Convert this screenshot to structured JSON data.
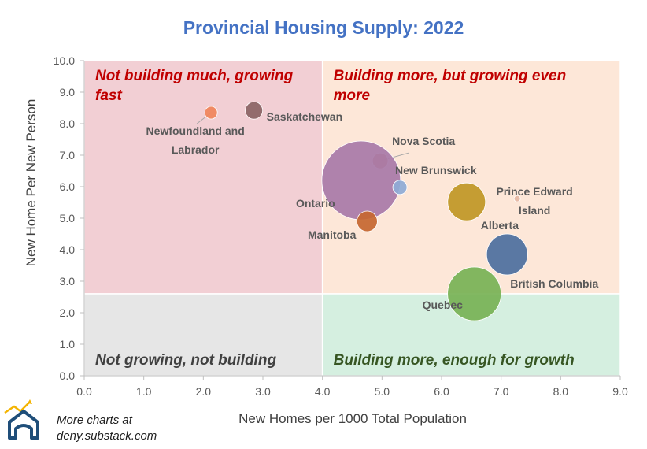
{
  "chart_data": {
    "type": "scatter",
    "title": "Provincial Housing Supply: 2022",
    "xlabel": "New Homes per 1000 Total Population",
    "ylabel": "New Home Per New Person",
    "xlim": [
      0,
      9
    ],
    "ylim": [
      0,
      10
    ],
    "xticks": [
      "0.0",
      "1.0",
      "2.0",
      "3.0",
      "4.0",
      "5.0",
      "6.0",
      "7.0",
      "8.0",
      "9.0"
    ],
    "yticks": [
      "0.0",
      "1.0",
      "2.0",
      "3.0",
      "4.0",
      "5.0",
      "6.0",
      "7.0",
      "8.0",
      "9.0",
      "10.0"
    ],
    "grid": false,
    "quadrants": [
      {
        "x0": 0,
        "x1": 4,
        "y0": 2.6,
        "y1": 10,
        "color": "#f2cfd4",
        "label": [
          "Not building much, growing",
          "fast"
        ],
        "label_color": "#c00000"
      },
      {
        "x0": 4,
        "x1": 9,
        "y0": 2.6,
        "y1": 10,
        "color": "#fde7d8",
        "label": [
          "Building more, but growing even",
          "more"
        ],
        "label_color": "#c00000"
      },
      {
        "x0": 0,
        "x1": 4,
        "y0": 0,
        "y1": 2.6,
        "color": "#e6e6e6",
        "label": [
          "Not growing, not building"
        ],
        "label_color": "#404040"
      },
      {
        "x0": 4,
        "x1": 9,
        "y0": 0,
        "y1": 2.6,
        "color": "#d5efe0",
        "label": [
          "Building more, enough for growth"
        ],
        "label_color": "#375623"
      }
    ],
    "points": [
      {
        "name": "Newfoundland and Labrador",
        "x": 2.13,
        "y": 8.35,
        "r": 8,
        "color": "#f0845a",
        "label": [
          "Newfoundland and",
          "Labrador"
        ]
      },
      {
        "name": "Saskatchewan",
        "x": 2.85,
        "y": 8.42,
        "r": 11,
        "color": "#8b6464",
        "label": [
          "Saskatchewan"
        ]
      },
      {
        "name": "Nova Scotia",
        "x": 4.97,
        "y": 6.82,
        "r": 10,
        "color": "#d0835d",
        "label": [
          "Nova Scotia"
        ]
      },
      {
        "name": "Ontario",
        "x": 4.65,
        "y": 6.2,
        "r": 50,
        "color": "#a879a8",
        "label": [
          "Ontario"
        ]
      },
      {
        "name": "New Brunswick",
        "x": 5.3,
        "y": 5.98,
        "r": 9,
        "color": "#8eabd6",
        "label": [
          "New Brunswick"
        ]
      },
      {
        "name": "Prince Edward Island",
        "x": 7.27,
        "y": 5.62,
        "r": 4,
        "color": "#e6b9a4",
        "label": [
          "Prince Edward",
          "Island"
        ]
      },
      {
        "name": "Alberta",
        "x": 6.42,
        "y": 5.52,
        "r": 24,
        "color": "#c09725",
        "label": [
          "Alberta"
        ]
      },
      {
        "name": "Manitoba",
        "x": 4.75,
        "y": 4.9,
        "r": 13,
        "color": "#c56730",
        "label": [
          "Manitoba"
        ]
      },
      {
        "name": "British Columbia",
        "x": 7.1,
        "y": 3.85,
        "r": 26,
        "color": "#4c6f9e",
        "label": [
          "British Columbia"
        ]
      },
      {
        "name": "Quebec",
        "x": 6.55,
        "y": 2.6,
        "r": 34,
        "color": "#77b255",
        "label": [
          "Quebec"
        ]
      }
    ]
  },
  "branding": {
    "line1": "More charts at",
    "line2": "deny.substack.com",
    "accent_color": "#1f4e79",
    "arrow_color": "#f4b400"
  }
}
